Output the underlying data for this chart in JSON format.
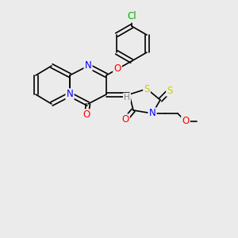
{
  "background_color": "#ebebeb",
  "bond_color": "#000000",
  "colors": {
    "N": "#0000ff",
    "O": "#ff0000",
    "S": "#cccc00",
    "Cl": "#00aa00",
    "H": "#808080",
    "C": "#000000"
  },
  "font_size": 7.5,
  "line_width": 1.2
}
